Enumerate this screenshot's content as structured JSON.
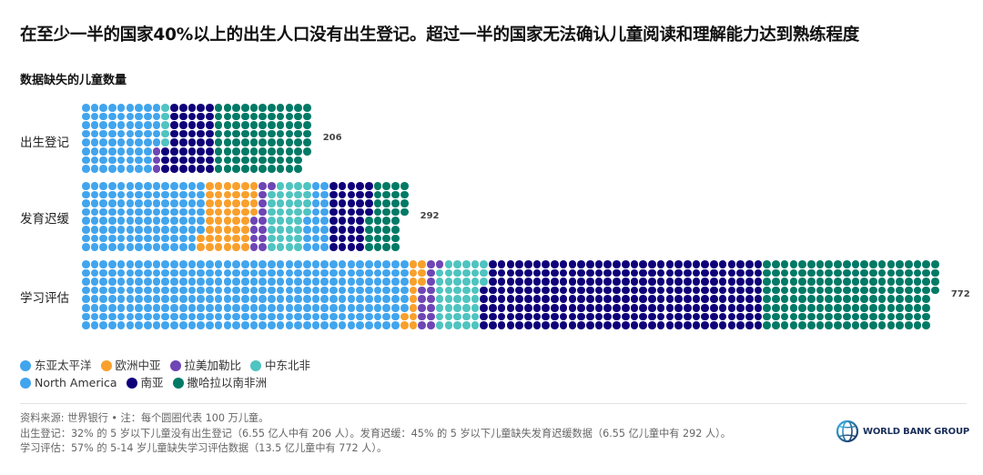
{
  "title": "在至少一半的国家40%以上的出生人口没有出生登记。超过一半的国家无法确认儿童阅读和理解能力达到熟练程度",
  "subtitle": "数据缺失的儿童数量",
  "colors": {
    "east_asia_pacific": "#41a5ee",
    "europe_central_asia": "#f9a02c",
    "latin_america_caribbean": "#6e45b5",
    "middle_east_north_africa": "#4fc4c0",
    "north_america": "#41a5ee",
    "south_asia": "#0f007a",
    "sub_saharan_africa": "#007a66"
  },
  "legend": {
    "row1": [
      {
        "key": "east_asia_pacific",
        "label": "东亚太平洋"
      },
      {
        "key": "europe_central_asia",
        "label": "欧洲中亚"
      },
      {
        "key": "latin_america_caribbean",
        "label": "拉美加勒比"
      },
      {
        "key": "middle_east_north_africa",
        "label": "中东北非"
      }
    ],
    "row2": [
      {
        "key": "north_america",
        "label": "North America"
      },
      {
        "key": "south_asia",
        "label": "南亚"
      },
      {
        "key": "sub_saharan_africa",
        "label": "撒哈拉以南非洲"
      }
    ]
  },
  "chart_data": {
    "type": "waffle",
    "title": "在至少一半的国家40%以上的出生人口没有出生登记。超过一半的国家无法确认儿童阅读和理解能力达到熟练程度",
    "subtitle": "数据缺失的儿童数量",
    "unit": "每个圆圈代表 100 万儿童",
    "grid_rows": 8,
    "fill_order": "column-major",
    "categories": [
      "出生登记",
      "发育迟缓",
      "学习评估"
    ],
    "totals": [
      206,
      292,
      772
    ],
    "series": [
      {
        "name": "东亚太平洋",
        "key": "east_asia_pacific",
        "values": [
          69,
          110,
          294
        ]
      },
      {
        "name": "欧洲中亚",
        "key": "europe_central_asia",
        "values": [
          0,
          46,
          13
        ]
      },
      {
        "name": "拉美加勒比",
        "key": "latin_america_caribbean",
        "values": [
          3,
          13,
          14
        ]
      },
      {
        "name": "中东北非",
        "key": "middle_east_north_africa",
        "values": [
          5,
          35,
          42
        ]
      },
      {
        "name": "North America",
        "key": "north_america",
        "values": [
          0,
          20,
          0
        ]
      },
      {
        "name": "南亚",
        "key": "south_asia",
        "values": [
          43,
          36,
          253
        ]
      },
      {
        "name": "撒哈拉以南非洲",
        "key": "sub_saharan_africa",
        "values": [
          86,
          32,
          156
        ]
      }
    ],
    "legend_position": "bottom-left",
    "grid": false
  },
  "footer": {
    "line1": "资料来源: 世界银行 • 注：每个圆圈代表 100 万儿童。",
    "line2": "出生登记：32% 的 5 岁以下儿童没有出生登记（6.55 亿人中有 206 人）。发育迟缓：45% 的 5 岁以下儿童缺失发育迟缓数据（6.55 亿儿童中有 292 人）。",
    "line3": "学习评估：57% 的 5-14 岁儿童缺失学习评估数据（13.5 亿儿童中有 772 人）。"
  },
  "logo": {
    "text": "WORLD BANK GROUP"
  }
}
